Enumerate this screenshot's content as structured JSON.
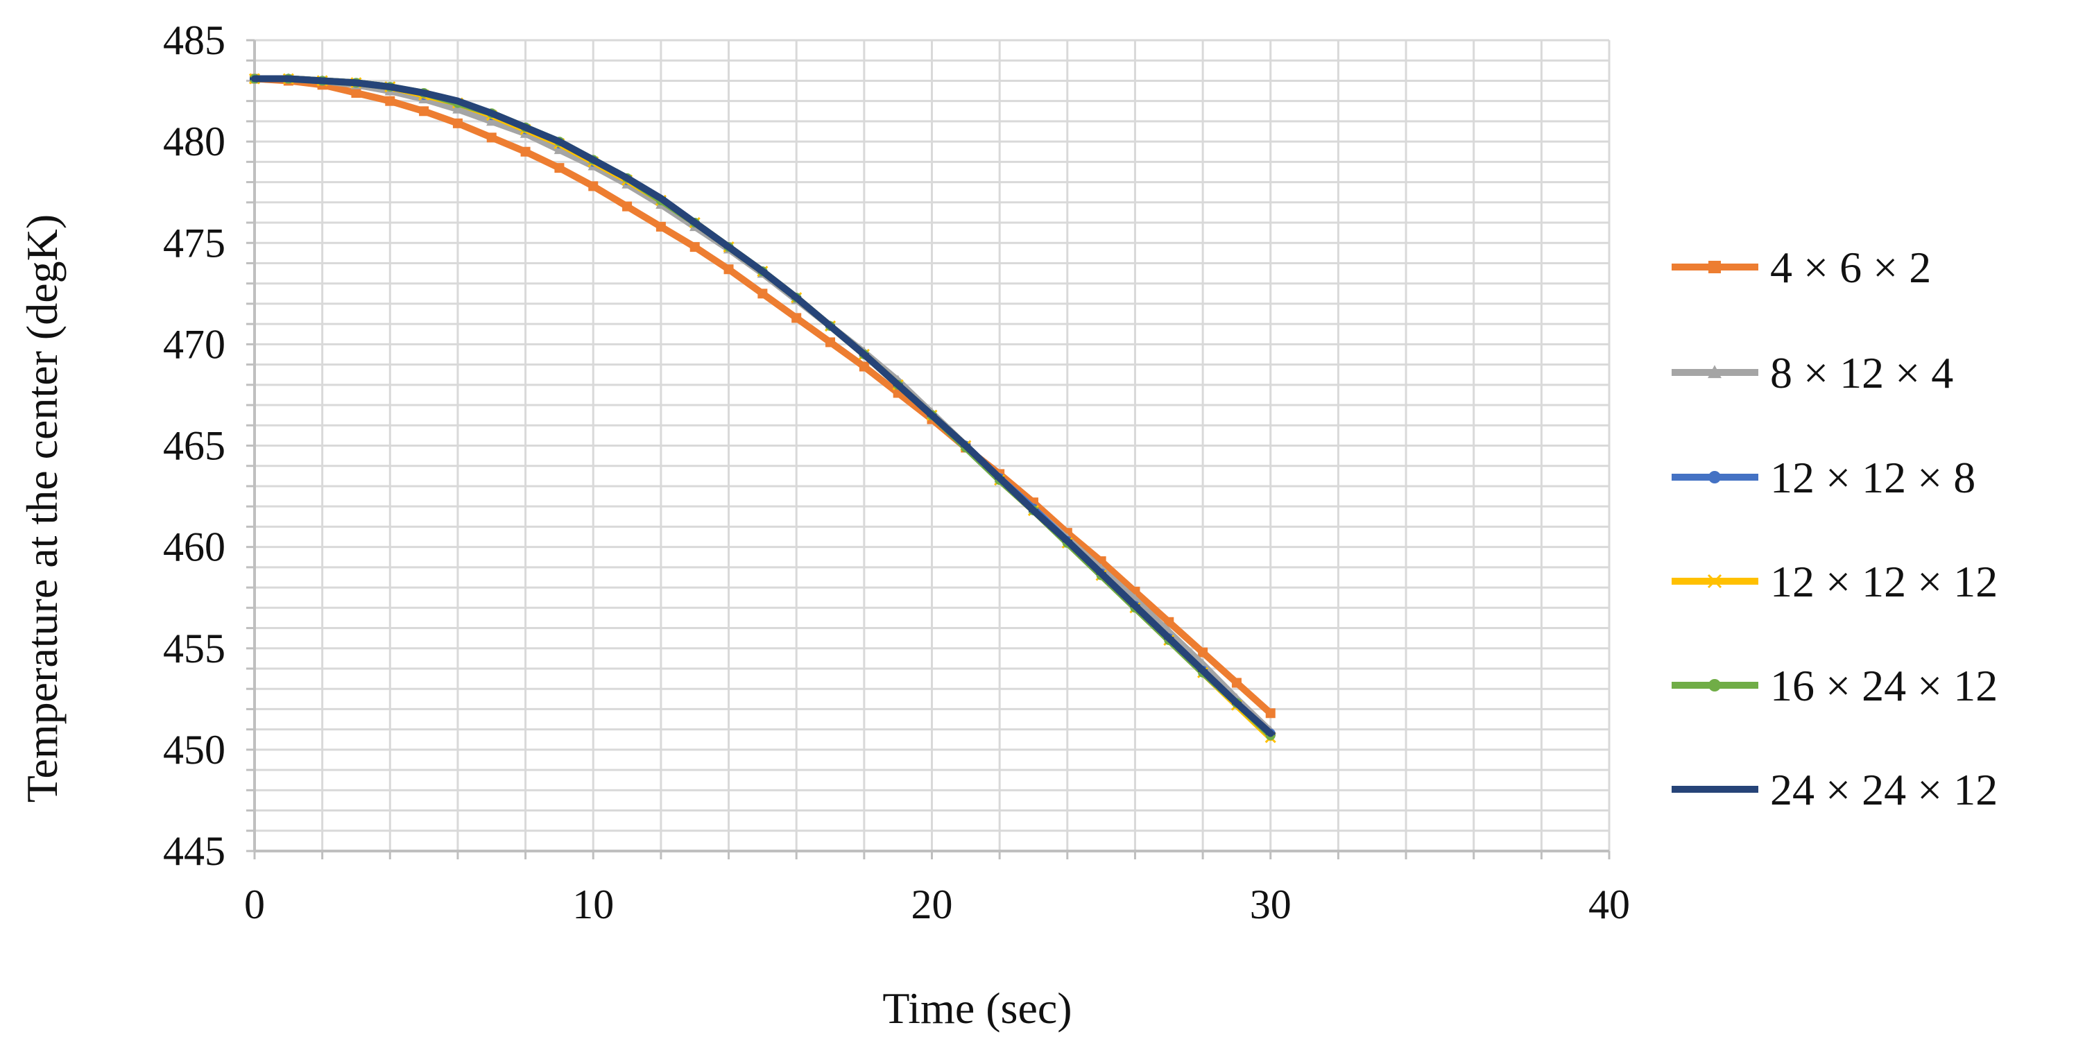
{
  "chart_data": {
    "type": "line",
    "xlabel": "Time (sec)",
    "ylabel": "Temperature at the center (degK)",
    "xlim": [
      0,
      40
    ],
    "ylim": [
      445,
      485
    ],
    "x_ticks": [
      "0",
      "10",
      "20",
      "30",
      "40"
    ],
    "y_ticks": [
      "445",
      "450",
      "455",
      "460",
      "465",
      "470",
      "475",
      "480",
      "485"
    ],
    "grid": true,
    "legend_position": "right",
    "x": [
      0,
      1,
      2,
      3,
      4,
      5,
      6,
      7,
      8,
      9,
      10,
      11,
      12,
      13,
      14,
      15,
      16,
      17,
      18,
      19,
      20,
      21,
      22,
      23,
      24,
      25,
      26,
      27,
      28,
      29,
      30
    ],
    "series": [
      {
        "name": "4 × 6 × 2",
        "color": "#ED7D31",
        "marker": "square",
        "values": [
          483.1,
          483.0,
          482.8,
          482.4,
          482.0,
          481.5,
          480.9,
          480.2,
          479.5,
          478.7,
          477.8,
          476.8,
          475.8,
          474.8,
          473.7,
          472.5,
          471.3,
          470.1,
          468.9,
          467.6,
          466.3,
          464.9,
          463.6,
          462.2,
          460.7,
          459.3,
          457.8,
          456.3,
          454.8,
          453.3,
          451.8
        ]
      },
      {
        "name": "8 × 12 × 4",
        "color": "#A5A5A5",
        "marker": "triangle",
        "values": [
          483.1,
          483.1,
          483.0,
          482.8,
          482.5,
          482.1,
          481.6,
          481.0,
          480.4,
          479.6,
          478.8,
          477.9,
          476.9,
          475.8,
          474.7,
          473.5,
          472.2,
          470.9,
          469.6,
          468.2,
          466.6,
          465.0,
          463.4,
          461.9,
          460.4,
          458.9,
          457.4,
          455.8,
          454.2,
          452.5,
          450.9
        ]
      },
      {
        "name": "12 × 12 × 8",
        "color": "#4472C4",
        "marker": "circle",
        "values": [
          483.1,
          483.1,
          483.0,
          482.9,
          482.7,
          482.3,
          481.9,
          481.3,
          480.6,
          479.9,
          479.0,
          478.1,
          477.1,
          476.0,
          474.8,
          473.6,
          472.3,
          470.9,
          469.5,
          468.0,
          466.5,
          465.0,
          463.4,
          461.9,
          460.3,
          458.7,
          457.1,
          455.5,
          453.9,
          452.3,
          450.8
        ]
      },
      {
        "name": "12 × 12 × 12",
        "color": "#FFC000",
        "marker": "x",
        "values": [
          483.1,
          483.1,
          483.0,
          482.9,
          482.7,
          482.3,
          481.9,
          481.3,
          480.6,
          479.9,
          479.0,
          478.1,
          477.1,
          476.0,
          474.8,
          473.6,
          472.3,
          470.9,
          469.5,
          468.0,
          466.5,
          465.0,
          463.3,
          461.8,
          460.2,
          458.6,
          457.0,
          455.4,
          453.8,
          452.2,
          450.6
        ]
      },
      {
        "name": "16 × 24 × 12",
        "color": "#70AD47",
        "marker": "circle",
        "values": [
          483.1,
          483.1,
          483.0,
          482.9,
          482.7,
          482.4,
          481.9,
          481.4,
          480.7,
          480.0,
          479.1,
          478.2,
          477.1,
          476.0,
          474.8,
          473.6,
          472.3,
          470.9,
          469.5,
          468.0,
          466.5,
          464.9,
          463.3,
          461.8,
          460.2,
          458.6,
          457.0,
          455.4,
          453.8,
          452.3,
          450.7
        ]
      },
      {
        "name": "24 × 24 × 12",
        "color": "#264478",
        "marker": "dash",
        "values": [
          483.1,
          483.1,
          483.0,
          482.9,
          482.7,
          482.4,
          482.0,
          481.4,
          480.7,
          480.0,
          479.1,
          478.2,
          477.2,
          476.0,
          474.8,
          473.6,
          472.3,
          470.9,
          469.5,
          468.0,
          466.5,
          465.0,
          463.4,
          461.8,
          460.3,
          458.7,
          457.1,
          455.5,
          453.9,
          452.3,
          450.8
        ]
      }
    ]
  }
}
